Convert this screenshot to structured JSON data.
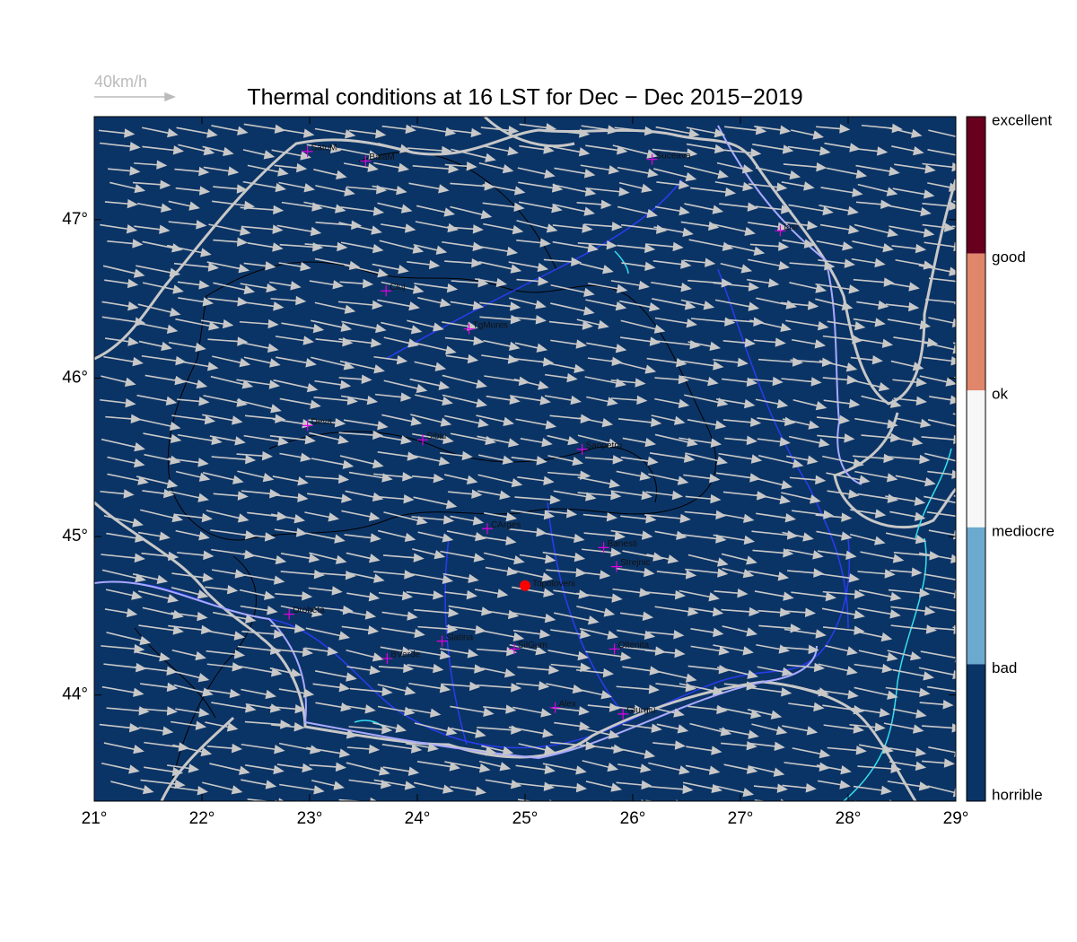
{
  "title": "Thermal conditions at 16 LST for Dec − Dec  2015−2019",
  "wind_scale": "40km/h",
  "map": {
    "xlim": [
      21,
      29
    ],
    "ylim": [
      43.33,
      47.65
    ],
    "xticks": [
      {
        "value": 21,
        "label": "21°"
      },
      {
        "value": 22,
        "label": "22°"
      },
      {
        "value": 23,
        "label": "23°"
      },
      {
        "value": 24,
        "label": "24°"
      },
      {
        "value": 25,
        "label": "25°"
      },
      {
        "value": 26,
        "label": "26°"
      },
      {
        "value": 27,
        "label": "27°"
      },
      {
        "value": 28,
        "label": "28°"
      },
      {
        "value": 29,
        "label": "29°"
      }
    ],
    "yticks": [
      {
        "value": 44,
        "label": "44°"
      },
      {
        "value": 45,
        "label": "45°"
      },
      {
        "value": 46,
        "label": "46°"
      },
      {
        "value": 47,
        "label": "47°"
      }
    ],
    "cities": [
      {
        "name": "SatuM",
        "lon": 22.98,
        "lat": 47.43
      },
      {
        "name": "BaiaM",
        "lon": 23.52,
        "lat": 47.37
      },
      {
        "name": "Suceava",
        "lon": 26.18,
        "lat": 47.38
      },
      {
        "name": "Iasi",
        "lon": 27.37,
        "lat": 46.93
      },
      {
        "name": "Cluj",
        "lon": 23.71,
        "lat": 46.55
      },
      {
        "name": "TgMures",
        "lon": 24.48,
        "lat": 46.31
      },
      {
        "name": "Deva",
        "lon": 22.98,
        "lat": 45.7
      },
      {
        "name": "Sibiu",
        "lon": 24.05,
        "lat": 45.61
      },
      {
        "name": "Sanpetru",
        "lon": 25.53,
        "lat": 45.55
      },
      {
        "name": "CArges",
        "lon": 24.65,
        "lat": 45.05
      },
      {
        "name": "Banesti",
        "lon": 25.73,
        "lat": 44.93
      },
      {
        "name": "Strejnic",
        "lon": 25.85,
        "lat": 44.81
      },
      {
        "name": "Drobeta",
        "lon": 22.81,
        "lat": 44.51
      },
      {
        "name": "Slatina",
        "lon": 24.23,
        "lat": 44.34
      },
      {
        "name": "SilGum",
        "lon": 24.9,
        "lat": 44.29
      },
      {
        "name": "Oltenita",
        "lon": 25.83,
        "lat": 44.29
      },
      {
        "name": "BVerde",
        "lon": 23.72,
        "lat": 44.23
      },
      {
        "name": "Alex",
        "lon": 25.28,
        "lat": 43.92
      },
      {
        "name": "Giurgiu",
        "lon": 25.91,
        "lat": 43.88
      }
    ],
    "marker": {
      "name": "Topoloveni",
      "lon": 25.0,
      "lat": 44.69,
      "color": "#ff0000"
    }
  },
  "colorbar": {
    "labels": [
      "excellent",
      "good",
      "ok",
      "mediocre",
      "bad",
      "horrible"
    ],
    "colors": [
      "#67001f",
      "#e0866a",
      "#f7f7f7",
      "#6ca9cf",
      "#0b3466"
    ]
  }
}
